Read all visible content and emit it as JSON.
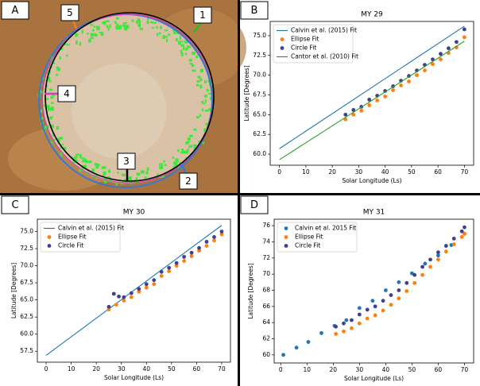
{
  "panels": [
    "A",
    "B",
    "C",
    "D"
  ],
  "image_labels": [
    "1",
    "2",
    "3",
    "4",
    "5"
  ],
  "chart_data": [
    {
      "type": "scatter",
      "title": "MY 29",
      "x_label": "Solar Longitude (Ls)",
      "y_label": "Latitude [Degrees]",
      "xlim": [
        -3.5,
        73.5
      ],
      "ylim": [
        58.6,
        76.8
      ],
      "xticks": [
        0,
        10,
        20,
        30,
        40,
        50,
        60,
        70
      ],
      "yticks": [
        {
          "value": 60,
          "label": "60.0"
        },
        {
          "value": 62.5,
          "label": "62.5"
        },
        {
          "value": 65,
          "label": "65.0"
        },
        {
          "value": 67.5,
          "label": "67.5"
        },
        {
          "value": 70,
          "label": "70.0"
        },
        {
          "value": 72.5,
          "label": "72.5"
        },
        {
          "value": 75,
          "label": "75.0"
        }
      ],
      "legend": "upper left",
      "series": [
        {
          "name": "Calvin et al. (2015) Fit",
          "style": "line",
          "color": "#1f77b4",
          "x": [
            0,
            70
          ],
          "values": [
            60.7,
            76.2
          ]
        },
        {
          "name": "Ellipse Fit",
          "style": "scatter",
          "color": "#ff7f0e",
          "x": [
            25,
            28,
            31,
            34,
            37,
            40,
            43,
            46,
            49,
            52,
            55,
            58,
            61,
            64,
            67,
            70
          ],
          "values": [
            64.4,
            65.0,
            65.5,
            66.2,
            66.8,
            67.3,
            68.1,
            68.7,
            69.2,
            70.0,
            70.6,
            71.4,
            72.0,
            72.8,
            73.5,
            74.8
          ]
        },
        {
          "name": "Circle Fit",
          "style": "scatter",
          "color": "#40408f",
          "x": [
            25,
            28,
            31,
            34,
            37,
            40,
            43,
            46,
            49,
            52,
            55,
            58,
            61,
            64,
            67,
            70
          ],
          "values": [
            65.0,
            65.6,
            66.0,
            66.9,
            67.4,
            68.0,
            68.6,
            69.3,
            69.9,
            70.6,
            71.3,
            72.0,
            72.7,
            73.4,
            74.2,
            75.8
          ]
        },
        {
          "name": "Cantor et al. (2010) Fit",
          "style": "line",
          "color": "#2ca02c",
          "x": [
            0,
            70
          ],
          "values": [
            59.3,
            74.3
          ]
        }
      ]
    },
    {
      "type": "scatter",
      "title": "MY 30",
      "x_label": "Solar Longitude (Ls)",
      "y_label": "Latitude [Degrees]",
      "xlim": [
        -3.5,
        73.5
      ],
      "ylim": [
        55.9,
        76.8
      ],
      "xticks": [
        0,
        10,
        20,
        30,
        40,
        50,
        60,
        70
      ],
      "yticks": [
        {
          "value": 57.5,
          "label": "57.5"
        },
        {
          "value": 60,
          "label": "60.0"
        },
        {
          "value": 62.5,
          "label": "62.5"
        },
        {
          "value": 65,
          "label": "65.0"
        },
        {
          "value": 67.5,
          "label": "67.5"
        },
        {
          "value": 70,
          "label": "70.0"
        },
        {
          "value": 72.5,
          "label": "72.5"
        },
        {
          "value": 75,
          "label": "75.0"
        }
      ],
      "legend": "upper left",
      "series": [
        {
          "name": "Calvin et al. (2015) Fit",
          "style": "line",
          "color": "#1f77b4",
          "x": [
            0,
            70
          ],
          "values": [
            56.9,
            75.9
          ]
        },
        {
          "name": "Ellipse Fit",
          "style": "scatter",
          "color": "#ff7f0e",
          "x": [
            25,
            28,
            31,
            34,
            37,
            40,
            43,
            46,
            49,
            52,
            55,
            58,
            61,
            64,
            67,
            70
          ],
          "values": [
            63.6,
            64.3,
            64.9,
            65.4,
            66.2,
            66.8,
            67.3,
            68.5,
            69.2,
            70.0,
            70.7,
            71.4,
            72.2,
            72.9,
            73.7,
            74.6
          ]
        },
        {
          "name": "Circle Fit",
          "style": "scatter",
          "color": "#40408f",
          "x": [
            25,
            27,
            29,
            31,
            34,
            37,
            40,
            43,
            46,
            49,
            52,
            55,
            58,
            61,
            64,
            67,
            70
          ],
          "values": [
            64.0,
            65.9,
            65.5,
            65.4,
            66.0,
            66.6,
            67.3,
            67.9,
            69.1,
            69.7,
            70.4,
            71.3,
            71.9,
            72.6,
            73.5,
            74.2,
            75.0
          ]
        }
      ]
    },
    {
      "type": "scatter",
      "title": "MY 31",
      "x_label": "Solar Longitude (Ls)",
      "y_label": "Latitude [Degrees]",
      "xlim": [
        -2.5,
        73.5
      ],
      "ylim": [
        59,
        76.8
      ],
      "xticks": [
        0,
        10,
        20,
        30,
        40,
        50,
        60,
        70
      ],
      "yticks": [
        60,
        62,
        64,
        66,
        68,
        70,
        72,
        74,
        76
      ],
      "legend": "upper left",
      "series": [
        {
          "name": "Calvin et al. 2015 Fit",
          "style": "scatter",
          "color": "#1f77b4",
          "x": [
            1,
            6,
            10.5,
            15.5,
            20.5,
            25,
            30,
            35,
            40,
            45,
            50,
            55,
            60,
            65,
            70
          ],
          "values": [
            60.0,
            60.9,
            61.6,
            62.7,
            63.6,
            64.3,
            65.8,
            66.7,
            68.0,
            69.0,
            70.1,
            71.3,
            72.3,
            73.6,
            75.0
          ]
        },
        {
          "name": "Ellipse Fit",
          "style": "scatter",
          "color": "#ff7f0e",
          "x": [
            21,
            24,
            27,
            30,
            33,
            36,
            39,
            42,
            45,
            48,
            51,
            54,
            57,
            60,
            63,
            66,
            69,
            70
          ],
          "values": [
            62.6,
            62.9,
            63.3,
            63.9,
            64.5,
            64.9,
            65.5,
            66.2,
            67.0,
            67.9,
            68.9,
            69.9,
            70.9,
            71.8,
            72.8,
            73.7,
            74.6,
            75.0
          ]
        },
        {
          "name": "Circle Fit",
          "style": "scatter",
          "color": "#40408f",
          "x": [
            21,
            24,
            27,
            30,
            33,
            36,
            39,
            42,
            45,
            48,
            51,
            54,
            57,
            60,
            63,
            66,
            69,
            70
          ],
          "values": [
            63.5,
            63.9,
            64.3,
            65.0,
            65.6,
            66.0,
            66.7,
            67.4,
            68.0,
            68.9,
            69.9,
            70.9,
            71.8,
            72.7,
            73.5,
            74.4,
            75.3,
            75.8
          ]
        }
      ]
    }
  ]
}
